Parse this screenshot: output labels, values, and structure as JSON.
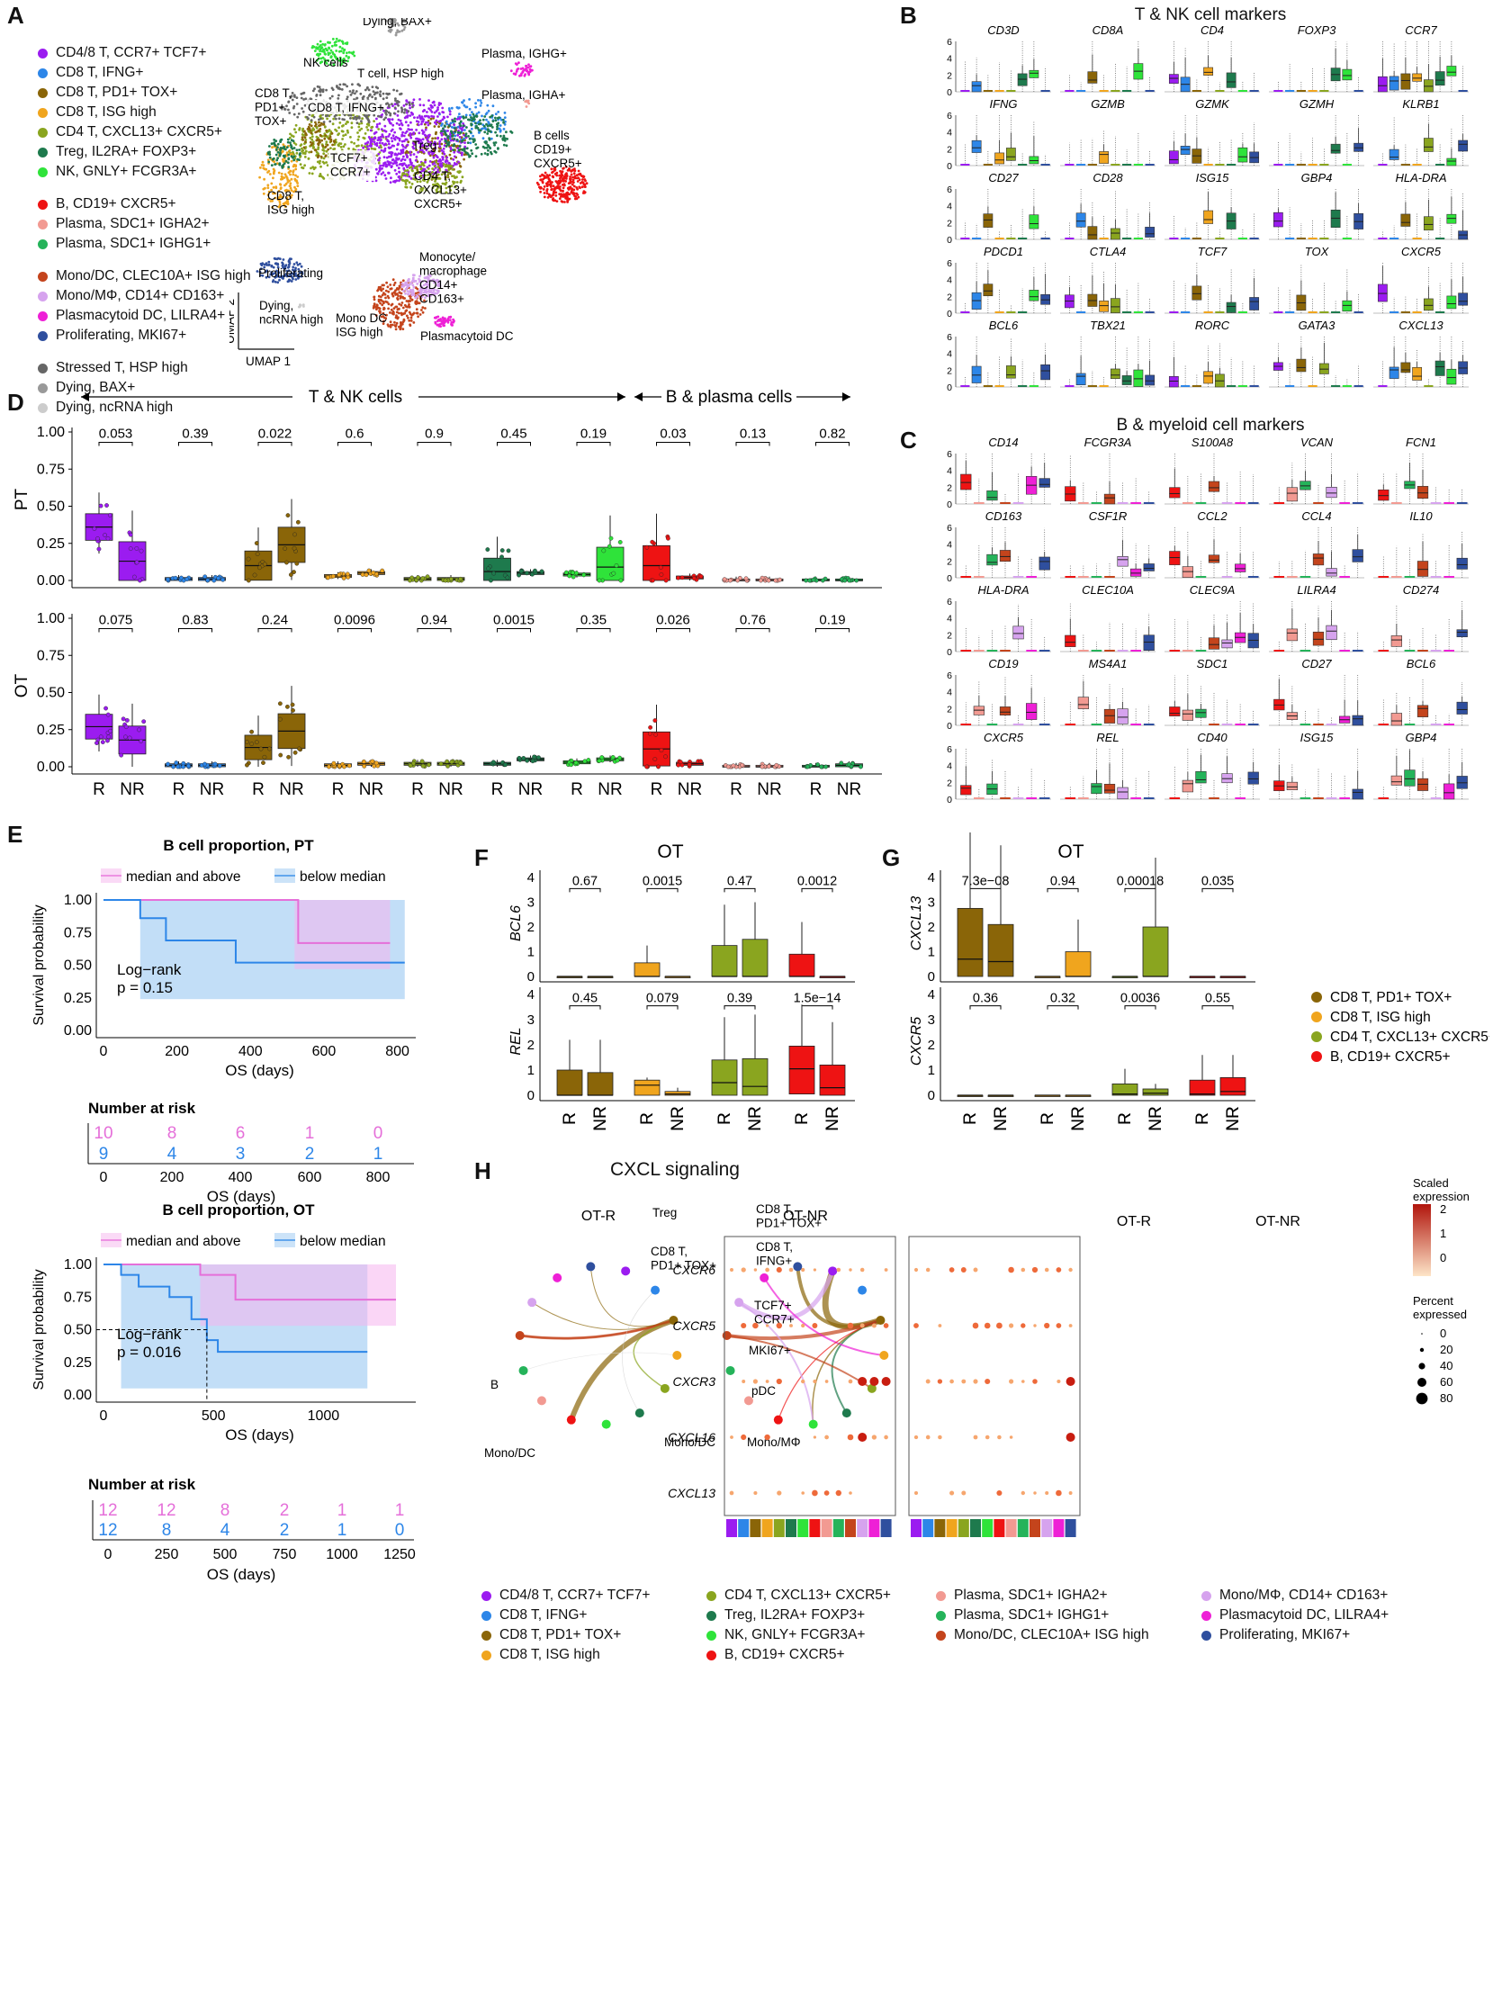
{
  "panels": {
    "A": "A",
    "B": "B",
    "C": "C",
    "D": "D",
    "E": "E",
    "F": "F",
    "G": "G",
    "H": "H"
  },
  "cluster_legend": [
    {
      "label": "CD4/8 T, CCR7+ TCF7+",
      "color": "#9b1cf0"
    },
    {
      "label": "CD8 T, IFNG+",
      "color": "#2d86e8"
    },
    {
      "label": "CD8 T, PD1+ TOX+",
      "color": "#8a6508"
    },
    {
      "label": "CD8 T, ISG high",
      "color": "#f0a51e"
    },
    {
      "label": "CD4 T, CXCL13+ CXCR5+",
      "color": "#8aa51f"
    },
    {
      "label": "Treg, IL2RA+ FOXP3+",
      "color": "#1e7a4d"
    },
    {
      "label": "NK, GNLY+ FCGR3A+",
      "color": "#2fe33a"
    },
    {
      "label": "B, CD19+ CXCR5+",
      "color": "#ee1313"
    },
    {
      "label": "Plasma, SDC1+ IGHA2+",
      "color": "#f29a92"
    },
    {
      "label": "Plasma, SDC1+ IGHG1+",
      "color": "#25b35a"
    },
    {
      "label": "Mono/DC, CLEC10A+ ISG high",
      "color": "#c4441c"
    },
    {
      "label": "Mono/MΦ, CD14+ CD163+",
      "color": "#d6a3ee"
    },
    {
      "label": "Plasmacytoid DC, LILRA4+",
      "color": "#ee20d6"
    },
    {
      "label": "Proliferating, MKI67+",
      "color": "#2f4f9e"
    },
    {
      "label": "Stressed T, HSP high",
      "color": "#666666"
    },
    {
      "label": "Dying, BAX+",
      "color": "#999999"
    },
    {
      "label": "Dying, ncRNA high",
      "color": "#cccccc"
    }
  ],
  "umap_labels": {
    "dying_bax": "Dying, BAX+",
    "nk": "NK cells",
    "t_hsp": "T cell, HSP high",
    "plasma_ighg": "Plasma, IGHG+",
    "plasma_igha": "Plasma, IGHA+",
    "cd8_pd1": "CD8 T,\nPD1+\nTOX+",
    "cd8_ifng": "CD8 T, IFNG+",
    "treg": "Treg",
    "tcf7": "TCF7+\nCCR7+",
    "bcells": "B cells\nCD19+\nCXCR5+",
    "cd8_isg": "CD8 T,\nISG high",
    "cd4_cxcl13": "CD4 T,\nCXCL13+\nCXCR5+",
    "prolif": "Proliferating",
    "mono": "Monocyte/\nmacrophage\nCD14+\nCD163+",
    "dying_nc": "Dying,\nncRNA high",
    "monodc": "Mono DC\nISG high",
    "pdc": "Plasmacytoid DC",
    "umap2": "UMAP 2",
    "umap1": "UMAP 1"
  },
  "panel_b": {
    "title": "T & NK cell markers",
    "genes": [
      "CD3D",
      "CD8A",
      "CD4",
      "FOXP3",
      "CCR7",
      "IFNG",
      "GZMB",
      "GZMK",
      "GZMH",
      "KLRB1",
      "CD27",
      "CD28",
      "ISG15",
      "GBP4",
      "HLA-DRA",
      "PDCD1",
      "CTLA4",
      "TCF7",
      "TOX",
      "CXCR5",
      "BCL6",
      "TBX21",
      "RORC",
      "GATA3",
      "CXCL13"
    ],
    "yticks": [
      "0",
      "2",
      "4",
      "6"
    ]
  },
  "panel_c": {
    "title": "B & myeloid cell markers",
    "genes": [
      "CD14",
      "FCGR3A",
      "S100A8",
      "VCAN",
      "FCN1",
      "CD163",
      "CSF1R",
      "CCL2",
      "CCL4",
      "IL10",
      "HLA-DRA",
      "CLEC10A",
      "CLEC9A",
      "LILRA4",
      "CD274",
      "CD19",
      "MS4A1",
      "SDC1",
      "CD27",
      "BCL6",
      "CXCR5",
      "REL",
      "CD40",
      "ISG15",
      "GBP4"
    ],
    "yticks": [
      "0",
      "2",
      "4",
      "6"
    ]
  },
  "panel_d": {
    "header_left": "T & NK cells",
    "header_right": "B & plasma cells",
    "row_labels": [
      "PT",
      "OT"
    ],
    "yticks": [
      "0.00",
      "0.25",
      "0.50",
      "0.75",
      "1.00"
    ],
    "xlabels": [
      "R",
      "NR"
    ],
    "pvals_pt": [
      "0.053",
      "0.39",
      "0.022",
      "0.6",
      "0.9",
      "0.45",
      "0.19",
      "0.03",
      "0.13",
      "0.82"
    ],
    "pvals_ot": [
      "0.075",
      "0.83",
      "0.24",
      "0.0096",
      "0.94",
      "0.0015",
      "0.35",
      "0.026",
      "0.76",
      "0.19"
    ]
  },
  "panel_e": {
    "title_pt": "B cell proportion, PT",
    "title_ot": "B cell proportion, OT",
    "legend_above": "median and above",
    "legend_below": "below median",
    "ylabel": "Survival probability",
    "xlabel": "OS (days)",
    "yticks": [
      "0.00",
      "0.25",
      "0.50",
      "0.75",
      "1.00"
    ],
    "xticks_pt": [
      "0",
      "200",
      "400",
      "600",
      "800"
    ],
    "xticks_ot": [
      "0",
      "500",
      "1000"
    ],
    "logrank_pt": "Log−rank",
    "p_pt": "p = 0.15",
    "logrank_ot": "Log−rank",
    "p_ot": "p = 0.016",
    "risk_title": "Number at risk",
    "risk_pt_above": [
      "10",
      "8",
      "6",
      "1",
      "0"
    ],
    "risk_pt_below": [
      "9",
      "4",
      "3",
      "2",
      "1"
    ],
    "risk_ot_above": [
      "12",
      "12",
      "8",
      "2",
      "1",
      "1"
    ],
    "risk_ot_below": [
      "12",
      "8",
      "4",
      "2",
      "1",
      "0"
    ],
    "risk_xticks_ot": [
      "0",
      "250",
      "500",
      "750",
      "1000",
      "1250"
    ]
  },
  "panel_f": {
    "title": "OT",
    "genes": [
      "BCL6",
      "REL"
    ],
    "pvals_top": [
      "0.67",
      "0.0015",
      "0.47",
      "0.0012"
    ],
    "pvals_bot": [
      "0.45",
      "0.079",
      "0.39",
      "1.5e−14"
    ],
    "yticks": [
      "0",
      "1",
      "2",
      "3",
      "4"
    ]
  },
  "panel_g": {
    "title": "OT",
    "genes": [
      "CXCL13",
      "CXCR5"
    ],
    "pvals_top": [
      "7.3e−08",
      "0.94",
      "0.00018",
      "0.035"
    ],
    "pvals_bot": [
      "0.36",
      "0.32",
      "0.0036",
      "0.55"
    ],
    "yticks_top": [
      "0",
      "1",
      "2",
      "3",
      "4"
    ],
    "yticks_bot": [
      "0",
      "1",
      "2",
      "3",
      "4"
    ]
  },
  "fg_legend": [
    {
      "label": "CD8 T, PD1+ TOX+",
      "color": "#8a6508"
    },
    {
      "label": "CD8 T, ISG high",
      "color": "#f0a51e"
    },
    {
      "label": "CD4 T, CXCL13+ CXCR5+",
      "color": "#8aa51f"
    },
    {
      "label": "B, CD19+ CXCR5+",
      "color": "#ee1313"
    }
  ],
  "panel_h": {
    "title": "CXCL signaling",
    "net_r": "OT-R",
    "net_nr": "OT-NR",
    "labels_r": {
      "cd8": "CD8 T,\nPD1+ TOX+",
      "b": "B",
      "monodc": "Mono/DC"
    },
    "labels_nr": {
      "treg": "Treg",
      "cd8": "CD8 T,\nPD1+ TOX+",
      "cd8ifng": "CD8 T,\nIFNG+",
      "tcf7": "TCF7+\nCCR7+",
      "mki": "MKI67+",
      "pdc": "pDC",
      "monodc": "Mono/DC",
      "monomf": "Mono/MΦ"
    },
    "dot_genes": [
      "CXCR6",
      "CXCR5",
      "CXCR3",
      "CXCL16",
      "CXCL13"
    ],
    "dot_r": "OT-R",
    "dot_nr": "OT-NR",
    "scale_title": "Scaled\nexpression",
    "scale_ticks": [
      "2",
      "1",
      "0"
    ],
    "pct_title": "Percent\nexpressed",
    "pct_ticks": [
      "0",
      "20",
      "40",
      "60",
      "80"
    ]
  },
  "bottom_legend": [
    {
      "label": "CD4/8 T, CCR7+ TCF7+",
      "color": "#9b1cf0"
    },
    {
      "label": "CD8 T, IFNG+",
      "color": "#2d86e8"
    },
    {
      "label": "CD8 T, PD1+ TOX+",
      "color": "#8a6508"
    },
    {
      "label": "CD8 T, ISG high",
      "color": "#f0a51e"
    },
    {
      "label": "CD4 T, CXCL13+ CXCR5+",
      "color": "#8aa51f"
    },
    {
      "label": "Treg, IL2RA+ FOXP3+",
      "color": "#1e7a4d"
    },
    {
      "label": "NK, GNLY+ FCGR3A+",
      "color": "#2fe33a"
    },
    {
      "label": "B, CD19+ CXCR5+",
      "color": "#ee1313"
    },
    {
      "label": "Plasma, SDC1+ IGHA2+",
      "color": "#f29a92"
    },
    {
      "label": "Plasma, SDC1+ IGHG1+",
      "color": "#25b35a"
    },
    {
      "label": "Mono/DC, CLEC10A+ ISG high",
      "color": "#c4441c"
    },
    {
      "label": "Mono/MΦ, CD14+ CD163+",
      "color": "#d6a3ee"
    },
    {
      "label": "Plasmacytoid DC, LILRA4+",
      "color": "#ee20d6"
    },
    {
      "label": "Proliferating, MKI67+",
      "color": "#2f4f9e"
    }
  ],
  "chart_data": [
    {
      "type": "box",
      "title": "D: cell-type proportions, PT",
      "categories": [
        "CD4/8 T CCR7+ TCF7+",
        "CD8 T IFNG+",
        "CD8 T PD1+ TOX+",
        "CD8 T ISG high",
        "CD4 T CXCL13+ CXCR5+",
        "Treg",
        "NK",
        "B",
        "Plasma IGHA2+",
        "Plasma IGHG1+"
      ],
      "medians_R": [
        0.36,
        0.01,
        0.1,
        0.03,
        0.01,
        0.06,
        0.04,
        0.1,
        0.0,
        0.0
      ],
      "medians_NR": [
        0.13,
        0.01,
        0.24,
        0.05,
        0.01,
        0.05,
        0.09,
        0.02,
        0.0,
        0.0
      ],
      "ylim": [
        0,
        1
      ]
    },
    {
      "type": "box",
      "title": "D: cell-type proportions, OT",
      "medians_R": [
        0.27,
        0.01,
        0.13,
        0.01,
        0.02,
        0.02,
        0.03,
        0.12,
        0.0,
        0.0
      ],
      "medians_NR": [
        0.18,
        0.01,
        0.24,
        0.02,
        0.02,
        0.05,
        0.05,
        0.02,
        0.0,
        0.01
      ],
      "ylim": [
        0,
        1
      ]
    },
    {
      "type": "line",
      "title": "E: KM, B cell proportion PT",
      "series": [
        {
          "name": "median and above",
          "x": [
            0,
            520,
            530,
            780
          ],
          "y": [
            1.0,
            1.0,
            0.67,
            0.67
          ]
        },
        {
          "name": "below median",
          "x": [
            0,
            100,
            170,
            360,
            820
          ],
          "y": [
            1.0,
            0.86,
            0.69,
            0.52,
            0.52
          ]
        }
      ]
    },
    {
      "type": "line",
      "title": "E: KM, B cell proportion OT",
      "series": [
        {
          "name": "median and above",
          "x": [
            0,
            440,
            600,
            1330
          ],
          "y": [
            1.0,
            0.92,
            0.73,
            0.73
          ]
        },
        {
          "name": "below median",
          "x": [
            0,
            80,
            160,
            300,
            400,
            470,
            520,
            1200
          ],
          "y": [
            1.0,
            0.92,
            0.83,
            0.75,
            0.58,
            0.42,
            0.33,
            0.33
          ]
        }
      ]
    }
  ]
}
